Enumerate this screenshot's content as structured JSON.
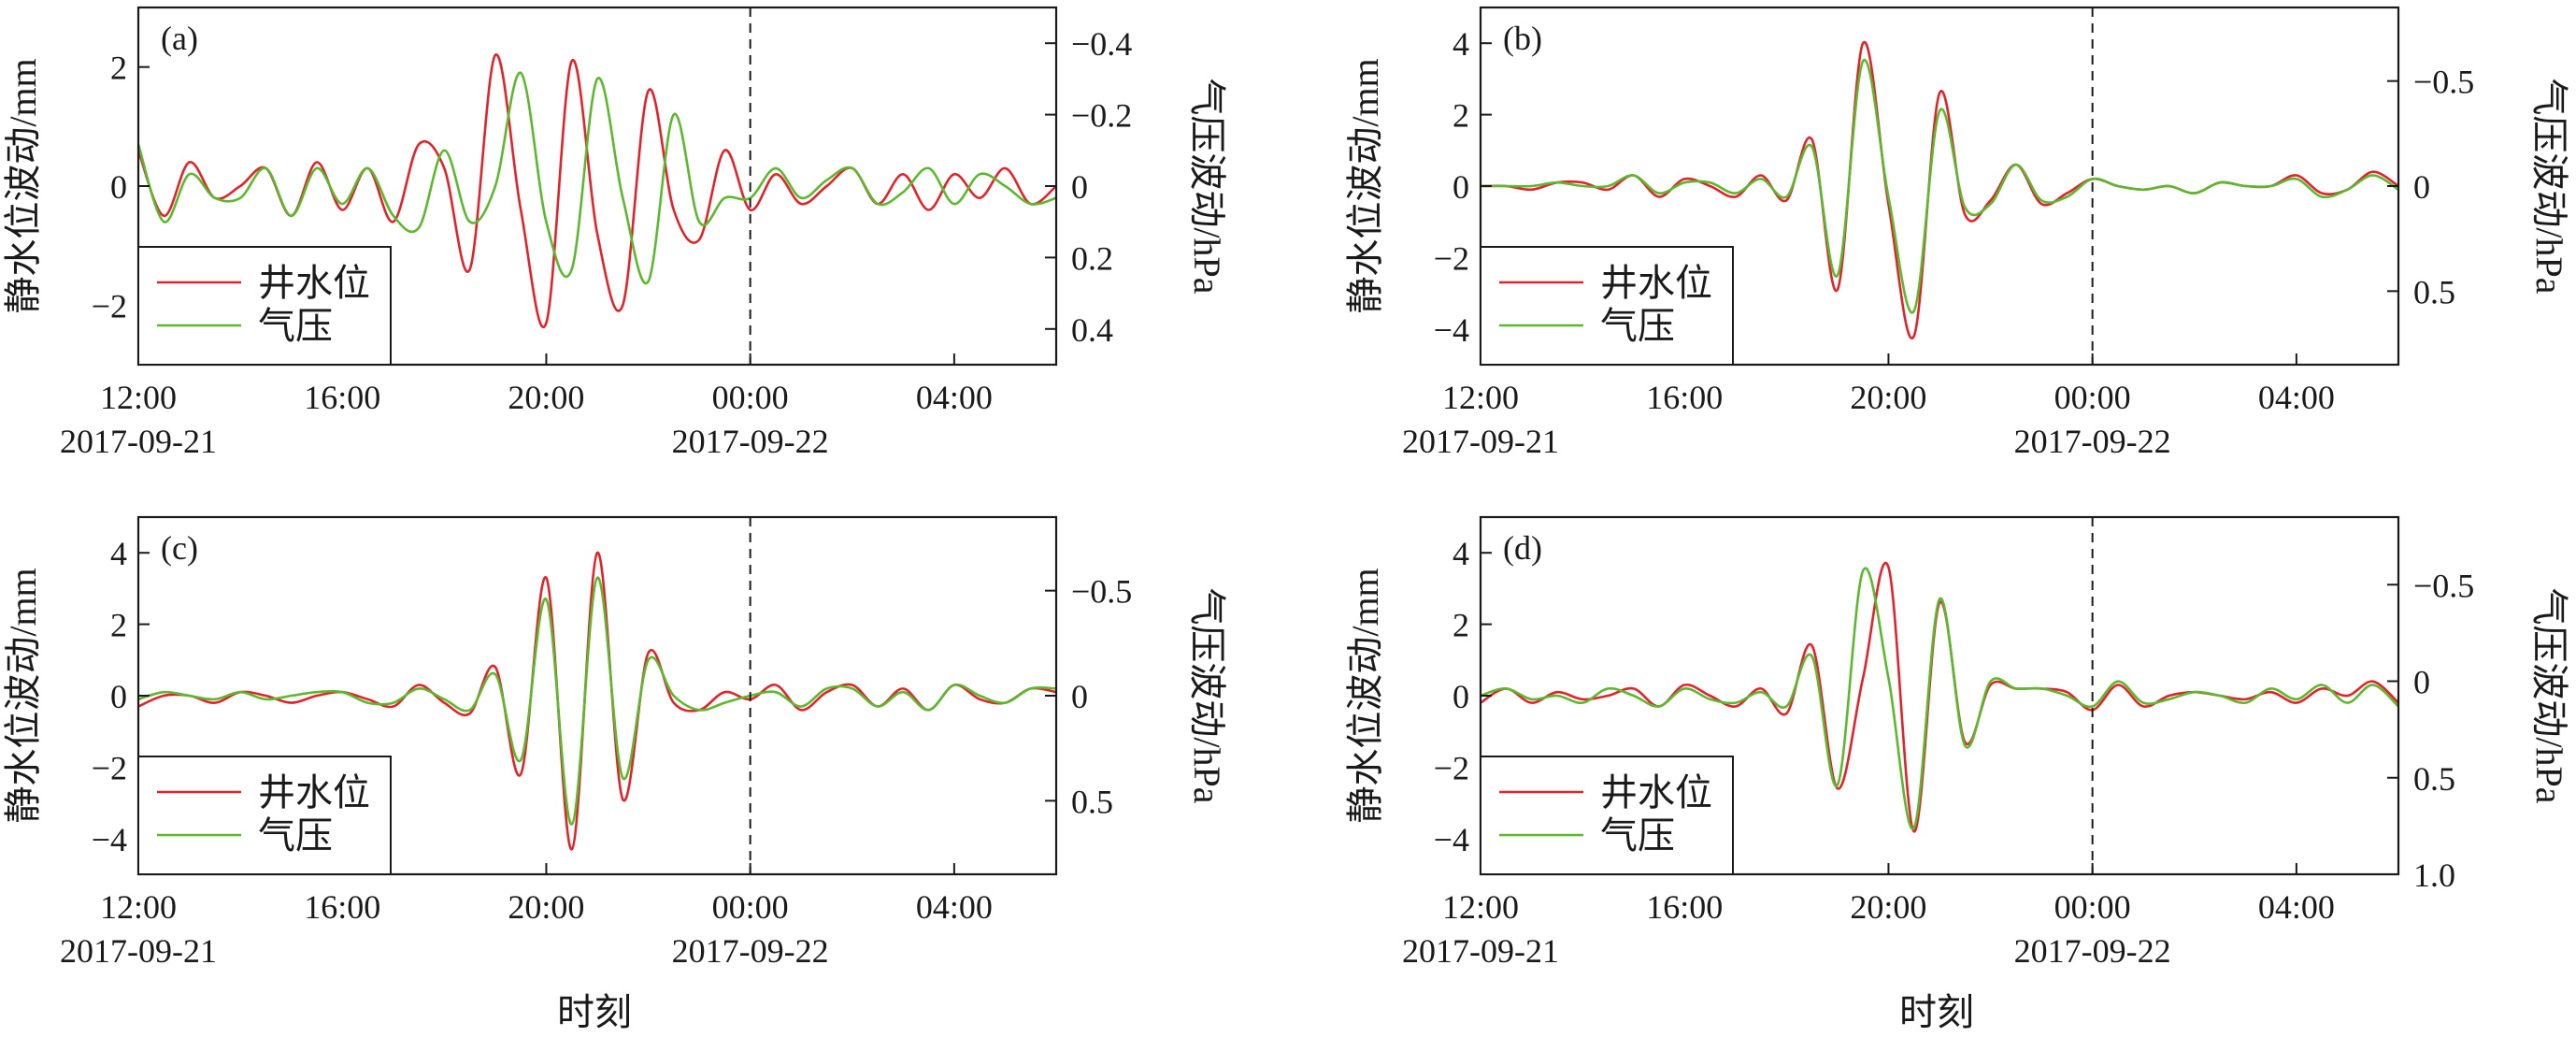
{
  "figure": {
    "xlabel": "时刻"
  },
  "colors": {
    "well": "#e0242c",
    "pressure": "#5cb82e",
    "axis": "#1a1a1a",
    "dash": "#1a1a1a"
  },
  "legend": {
    "well": "井水位",
    "pressure": "气压"
  },
  "x_ticks": [
    {
      "value": 0,
      "time": "12:00",
      "date": "2017-09-21"
    },
    {
      "value": 4,
      "time": "16:00",
      "date": ""
    },
    {
      "value": 8,
      "time": "20:00",
      "date": ""
    },
    {
      "value": 12,
      "time": "00:00",
      "date": "2017-09-22"
    },
    {
      "value": 16,
      "time": "04:00",
      "date": ""
    }
  ],
  "chart_data": [
    {
      "type": "line",
      "panel": "(a)",
      "xlim": [
        "2017-09-21 12:00",
        "2017-09-22 06:00"
      ],
      "ylabel": "静水位波动/mm",
      "ylabel_right": "气压波动/hPa",
      "ylim": [
        -3,
        3
      ],
      "yticks": [
        -2,
        0,
        2
      ],
      "yticklabels": [
        "−2",
        "0",
        "2"
      ],
      "y2lim": [
        0.5,
        -0.5
      ],
      "y2ticks": [
        -0.4,
        -0.2,
        0,
        0.2,
        0.4
      ],
      "y2ticklabels": [
        "−0.4",
        "−0.2",
        "0",
        "0.2",
        "0.4"
      ],
      "vline": "2017-09-22 00:00",
      "series": [
        {
          "name": "井水位",
          "axis": "left",
          "x": [
            "2017-09-21 12:00",
            "2017-09-21 12:30",
            "2017-09-21 13:00",
            "2017-09-21 13:30",
            "2017-09-21 14:00",
            "2017-09-21 14:30",
            "2017-09-21 15:00",
            "2017-09-21 15:30",
            "2017-09-21 16:00",
            "2017-09-21 16:30",
            "2017-09-21 17:00",
            "2017-09-21 17:30",
            "2017-09-21 18:00",
            "2017-09-21 18:30",
            "2017-09-21 19:00",
            "2017-09-21 19:30",
            "2017-09-21 20:00",
            "2017-09-21 20:30",
            "2017-09-21 21:00",
            "2017-09-21 21:30",
            "2017-09-21 22:00",
            "2017-09-21 22:30",
            "2017-09-21 23:00",
            "2017-09-21 23:30",
            "2017-09-22 00:00",
            "2017-09-22 00:30",
            "2017-09-22 01:00",
            "2017-09-22 01:30",
            "2017-09-22 02:00",
            "2017-09-22 02:30",
            "2017-09-22 03:00",
            "2017-09-22 03:30",
            "2017-09-22 04:00",
            "2017-09-22 04:30",
            "2017-09-22 05:00",
            "2017-09-22 05:30",
            "2017-09-22 06:00"
          ],
          "y": [
            0.6,
            -0.5,
            0.4,
            -0.2,
            0.0,
            0.3,
            -0.5,
            0.4,
            -0.4,
            0.3,
            -0.6,
            0.7,
            0.3,
            -1.4,
            2.2,
            -0.4,
            -2.3,
            2.1,
            -0.8,
            -2.0,
            1.6,
            -0.4,
            -0.9,
            0.6,
            -0.4,
            0.2,
            -0.3,
            0.0,
            0.3,
            -0.3,
            0.2,
            -0.4,
            0.2,
            -0.2,
            0.3,
            -0.3,
            0.0
          ]
        },
        {
          "name": "气压",
          "axis": "left",
          "x": [
            "2017-09-21 12:00",
            "2017-09-21 12:30",
            "2017-09-21 13:00",
            "2017-09-21 13:30",
            "2017-09-21 14:00",
            "2017-09-21 14:30",
            "2017-09-21 15:00",
            "2017-09-21 15:30",
            "2017-09-21 16:00",
            "2017-09-21 16:30",
            "2017-09-21 17:00",
            "2017-09-21 17:30",
            "2017-09-21 18:00",
            "2017-09-21 18:30",
            "2017-09-21 19:00",
            "2017-09-21 19:30",
            "2017-09-21 20:00",
            "2017-09-21 20:30",
            "2017-09-21 21:00",
            "2017-09-21 21:30",
            "2017-09-21 22:00",
            "2017-09-21 22:30",
            "2017-09-21 23:00",
            "2017-09-21 23:30",
            "2017-09-22 00:00",
            "2017-09-22 00:30",
            "2017-09-22 01:00",
            "2017-09-22 01:30",
            "2017-09-22 02:00",
            "2017-09-22 02:30",
            "2017-09-22 03:00",
            "2017-09-22 03:30",
            "2017-09-22 04:00",
            "2017-09-22 04:30",
            "2017-09-22 05:00",
            "2017-09-22 05:30",
            "2017-09-22 06:00"
          ],
          "y": [
            0.7,
            -0.6,
            0.2,
            -0.2,
            -0.2,
            0.3,
            -0.5,
            0.3,
            -0.3,
            0.3,
            -0.5,
            -0.7,
            0.6,
            -0.6,
            0.0,
            1.9,
            -0.6,
            -1.4,
            1.8,
            -0.2,
            -1.6,
            1.2,
            -0.6,
            -0.2,
            -0.2,
            0.3,
            -0.2,
            0.1,
            0.3,
            -0.3,
            -0.1,
            0.3,
            -0.3,
            0.2,
            0.0,
            -0.3,
            -0.2
          ]
        }
      ]
    },
    {
      "type": "line",
      "panel": "(b)",
      "xlim": [
        "2017-09-21 12:00",
        "2017-09-22 06:00"
      ],
      "ylabel": "静水位波动/mm",
      "ylabel_right": "气压波动/hPa",
      "ylim": [
        -5,
        5
      ],
      "yticks": [
        -4,
        -2,
        0,
        2,
        4
      ],
      "yticklabels": [
        "−4",
        "−2",
        "0",
        "2",
        "4"
      ],
      "y2lim": [
        0.85,
        -0.85
      ],
      "y2ticks": [
        -0.5,
        0,
        0.5
      ],
      "y2ticklabels": [
        "−0.5",
        "0",
        "0.5"
      ],
      "vline": "2017-09-22 00:00",
      "series": [
        {
          "name": "井水位",
          "axis": "left",
          "x": [
            "2017-09-21 12:00",
            "2017-09-21 12:30",
            "2017-09-21 13:00",
            "2017-09-21 13:30",
            "2017-09-21 14:00",
            "2017-09-21 14:30",
            "2017-09-21 15:00",
            "2017-09-21 15:30",
            "2017-09-21 16:00",
            "2017-09-21 16:30",
            "2017-09-21 17:00",
            "2017-09-21 17:30",
            "2017-09-21 18:00",
            "2017-09-21 18:30",
            "2017-09-21 19:00",
            "2017-09-21 19:30",
            "2017-09-21 20:00",
            "2017-09-21 20:30",
            "2017-09-21 21:00",
            "2017-09-21 21:30",
            "2017-09-21 22:00",
            "2017-09-21 22:30",
            "2017-09-21 23:00",
            "2017-09-21 23:30",
            "2017-09-22 00:00",
            "2017-09-22 00:30",
            "2017-09-22 01:00",
            "2017-09-22 01:30",
            "2017-09-22 02:00",
            "2017-09-22 02:30",
            "2017-09-22 03:00",
            "2017-09-22 03:30",
            "2017-09-22 04:00",
            "2017-09-22 04:30",
            "2017-09-22 05:00",
            "2017-09-22 05:30",
            "2017-09-22 06:00"
          ],
          "y": [
            0.0,
            0.0,
            -0.1,
            0.1,
            0.1,
            -0.1,
            0.3,
            -0.3,
            0.2,
            0.0,
            -0.3,
            0.3,
            -0.4,
            1.3,
            -2.9,
            4.0,
            -0.5,
            -4.2,
            2.6,
            -0.8,
            -0.4,
            0.6,
            -0.5,
            -0.2,
            0.2,
            0.0,
            -0.1,
            0.0,
            -0.2,
            0.1,
            0.0,
            0.0,
            0.3,
            -0.2,
            -0.1,
            0.4,
            0.0
          ]
        },
        {
          "name": "气压",
          "axis": "left",
          "x": [
            "2017-09-21 12:00",
            "2017-09-21 12:30",
            "2017-09-21 13:00",
            "2017-09-21 13:30",
            "2017-09-21 14:00",
            "2017-09-21 14:30",
            "2017-09-21 15:00",
            "2017-09-21 15:30",
            "2017-09-21 16:00",
            "2017-09-21 16:30",
            "2017-09-21 17:00",
            "2017-09-21 17:30",
            "2017-09-21 18:00",
            "2017-09-21 18:30",
            "2017-09-21 19:00",
            "2017-09-21 19:30",
            "2017-09-21 20:00",
            "2017-09-21 20:30",
            "2017-09-21 21:00",
            "2017-09-21 21:30",
            "2017-09-21 22:00",
            "2017-09-21 22:30",
            "2017-09-21 23:00",
            "2017-09-21 23:30",
            "2017-09-22 00:00",
            "2017-09-22 00:30",
            "2017-09-22 01:00",
            "2017-09-22 01:30",
            "2017-09-22 02:00",
            "2017-09-22 02:30",
            "2017-09-22 03:00",
            "2017-09-22 03:30",
            "2017-09-22 04:00",
            "2017-09-22 04:30",
            "2017-09-22 05:00",
            "2017-09-22 05:30",
            "2017-09-22 06:00"
          ],
          "y": [
            0.0,
            0.0,
            0.0,
            0.1,
            0.0,
            0.0,
            0.3,
            -0.2,
            0.1,
            0.1,
            -0.2,
            0.2,
            -0.3,
            1.1,
            -2.5,
            3.5,
            -0.3,
            -3.5,
            2.1,
            -0.6,
            -0.5,
            0.6,
            -0.4,
            -0.3,
            0.2,
            0.0,
            -0.1,
            0.0,
            -0.2,
            0.1,
            0.0,
            0.0,
            0.2,
            -0.3,
            -0.1,
            0.3,
            -0.1
          ]
        }
      ]
    },
    {
      "type": "line",
      "panel": "(c)",
      "xlim": [
        "2017-09-21 12:00",
        "2017-09-22 06:00"
      ],
      "ylabel": "静水位波动/mm",
      "ylabel_right": "气压波动/hPa",
      "ylim": [
        -5,
        5
      ],
      "yticks": [
        -4,
        -2,
        0,
        2,
        4
      ],
      "yticklabels": [
        "−4",
        "−2",
        "0",
        "2",
        "4"
      ],
      "y2lim": [
        0.85,
        -0.85
      ],
      "y2ticks": [
        -0.5,
        0,
        0.5
      ],
      "y2ticklabels": [
        "−0.5",
        "0",
        "0.5"
      ],
      "vline": "2017-09-22 00:00",
      "series": [
        {
          "name": "井水位",
          "axis": "left",
          "x": [
            "2017-09-21 12:00",
            "2017-09-21 12:30",
            "2017-09-21 13:00",
            "2017-09-21 13:30",
            "2017-09-21 14:00",
            "2017-09-21 14:30",
            "2017-09-21 15:00",
            "2017-09-21 15:30",
            "2017-09-21 16:00",
            "2017-09-21 16:30",
            "2017-09-21 17:00",
            "2017-09-21 17:30",
            "2017-09-21 18:00",
            "2017-09-21 18:30",
            "2017-09-21 19:00",
            "2017-09-21 19:30",
            "2017-09-21 20:00",
            "2017-09-21 20:30",
            "2017-09-21 21:00",
            "2017-09-21 21:30",
            "2017-09-21 22:00",
            "2017-09-21 22:30",
            "2017-09-21 23:00",
            "2017-09-21 23:30",
            "2017-09-22 00:00",
            "2017-09-22 00:30",
            "2017-09-22 01:00",
            "2017-09-22 01:30",
            "2017-09-22 02:00",
            "2017-09-22 02:30",
            "2017-09-22 03:00",
            "2017-09-22 03:30",
            "2017-09-22 04:00",
            "2017-09-22 04:30",
            "2017-09-22 05:00",
            "2017-09-22 05:30",
            "2017-09-22 06:00"
          ],
          "y": [
            -0.3,
            0.0,
            0.0,
            -0.2,
            0.1,
            0.0,
            -0.2,
            0.0,
            0.1,
            -0.1,
            -0.3,
            0.3,
            -0.2,
            -0.5,
            0.8,
            -2.2,
            3.3,
            -4.3,
            4.0,
            -2.9,
            1.2,
            -0.2,
            -0.4,
            0.1,
            -0.1,
            0.3,
            -0.4,
            0.1,
            0.3,
            -0.3,
            0.2,
            -0.4,
            0.3,
            -0.1,
            -0.2,
            0.2,
            0.1
          ]
        },
        {
          "name": "气压",
          "axis": "left",
          "x": [
            "2017-09-21 12:00",
            "2017-09-21 12:30",
            "2017-09-21 13:00",
            "2017-09-21 13:30",
            "2017-09-21 14:00",
            "2017-09-21 14:30",
            "2017-09-21 15:00",
            "2017-09-21 15:30",
            "2017-09-21 16:00",
            "2017-09-21 16:30",
            "2017-09-21 17:00",
            "2017-09-21 17:30",
            "2017-09-21 18:00",
            "2017-09-21 18:30",
            "2017-09-21 19:00",
            "2017-09-21 19:30",
            "2017-09-21 20:00",
            "2017-09-21 20:30",
            "2017-09-21 21:00",
            "2017-09-21 21:30",
            "2017-09-21 22:00",
            "2017-09-21 22:30",
            "2017-09-21 23:00",
            "2017-09-21 23:30",
            "2017-09-22 00:00",
            "2017-09-22 00:30",
            "2017-09-22 01:00",
            "2017-09-22 01:30",
            "2017-09-22 02:00",
            "2017-09-22 02:30",
            "2017-09-22 03:00",
            "2017-09-22 03:30",
            "2017-09-22 04:00",
            "2017-09-22 04:30",
            "2017-09-22 05:00",
            "2017-09-22 05:30",
            "2017-09-22 06:00"
          ],
          "y": [
            -0.1,
            0.1,
            0.0,
            -0.1,
            0.1,
            -0.1,
            0.0,
            0.1,
            0.1,
            -0.2,
            -0.2,
            0.2,
            -0.1,
            -0.4,
            0.6,
            -1.8,
            2.7,
            -3.6,
            3.3,
            -2.3,
            1.0,
            0.0,
            -0.4,
            -0.2,
            0.0,
            0.1,
            -0.3,
            0.2,
            0.2,
            -0.3,
            0.1,
            -0.4,
            0.3,
            0.0,
            -0.2,
            0.2,
            0.2
          ]
        }
      ]
    },
    {
      "type": "line",
      "panel": "(d)",
      "xlim": [
        "2017-09-21 12:00",
        "2017-09-22 06:00"
      ],
      "ylabel": "静水位波动/mm",
      "ylabel_right": "气压波动/hPa",
      "ylim": [
        -5,
        5
      ],
      "yticks": [
        -4,
        -2,
        0,
        2,
        4
      ],
      "yticklabels": [
        "−4",
        "−2",
        "0",
        "2",
        "4"
      ],
      "y2lim": [
        1.0,
        -0.85
      ],
      "y2ticks": [
        -0.5,
        0,
        0.5,
        1.0
      ],
      "y2ticklabels": [
        "−0.5",
        "0",
        "0.5",
        "1.0"
      ],
      "vline": "2017-09-22 00:00",
      "series": [
        {
          "name": "井水位",
          "axis": "left",
          "x": [
            "2017-09-21 12:00",
            "2017-09-21 12:30",
            "2017-09-21 13:00",
            "2017-09-21 13:30",
            "2017-09-21 14:00",
            "2017-09-21 14:30",
            "2017-09-21 15:00",
            "2017-09-21 15:30",
            "2017-09-21 16:00",
            "2017-09-21 16:30",
            "2017-09-21 17:00",
            "2017-09-21 17:30",
            "2017-09-21 18:00",
            "2017-09-21 18:30",
            "2017-09-21 19:00",
            "2017-09-21 19:30",
            "2017-09-21 20:00",
            "2017-09-21 20:30",
            "2017-09-21 21:00",
            "2017-09-21 21:30",
            "2017-09-21 22:00",
            "2017-09-21 22:30",
            "2017-09-21 23:00",
            "2017-09-21 23:30",
            "2017-09-22 00:00",
            "2017-09-22 00:30",
            "2017-09-22 01:00",
            "2017-09-22 01:30",
            "2017-09-22 02:00",
            "2017-09-22 02:30",
            "2017-09-22 03:00",
            "2017-09-22 03:30",
            "2017-09-22 04:00",
            "2017-09-22 04:30",
            "2017-09-22 05:00",
            "2017-09-22 05:30",
            "2017-09-22 06:00"
          ],
          "y": [
            -0.2,
            0.2,
            -0.2,
            0.1,
            -0.1,
            0.0,
            0.2,
            -0.3,
            0.3,
            0.0,
            -0.3,
            0.2,
            -0.5,
            1.4,
            -2.6,
            0.5,
            3.6,
            -3.8,
            2.6,
            -1.3,
            0.3,
            0.2,
            0.2,
            0.1,
            -0.4,
            0.3,
            -0.3,
            0.0,
            0.1,
            0.0,
            -0.1,
            0.1,
            -0.2,
            0.2,
            0.0,
            0.4,
            -0.2
          ]
        },
        {
          "name": "气压",
          "axis": "left",
          "x": [
            "2017-09-21 12:00",
            "2017-09-21 12:30",
            "2017-09-21 13:00",
            "2017-09-21 13:30",
            "2017-09-21 14:00",
            "2017-09-21 14:30",
            "2017-09-21 15:00",
            "2017-09-21 15:30",
            "2017-09-21 16:00",
            "2017-09-21 16:30",
            "2017-09-21 17:00",
            "2017-09-21 17:30",
            "2017-09-21 18:00",
            "2017-09-21 18:30",
            "2017-09-21 19:00",
            "2017-09-21 19:30",
            "2017-09-21 20:00",
            "2017-09-21 20:30",
            "2017-09-21 21:00",
            "2017-09-21 21:30",
            "2017-09-21 22:00",
            "2017-09-21 22:30",
            "2017-09-21 23:00",
            "2017-09-21 23:30",
            "2017-09-22 00:00",
            "2017-09-22 00:30",
            "2017-09-22 01:00",
            "2017-09-22 01:30",
            "2017-09-22 02:00",
            "2017-09-22 02:30",
            "2017-09-22 03:00",
            "2017-09-22 03:30",
            "2017-09-22 04:00",
            "2017-09-22 04:30",
            "2017-09-22 05:00",
            "2017-09-22 05:30",
            "2017-09-22 06:00"
          ],
          "y": [
            0.0,
            0.2,
            -0.1,
            0.0,
            -0.2,
            0.2,
            0.0,
            -0.3,
            0.2,
            -0.1,
            -0.2,
            0.1,
            -0.3,
            1.1,
            -2.5,
            3.5,
            0.5,
            -3.7,
            2.7,
            -1.4,
            0.4,
            0.2,
            0.2,
            0.0,
            -0.3,
            0.4,
            -0.2,
            -0.1,
            0.1,
            0.0,
            -0.2,
            0.2,
            -0.1,
            0.3,
            -0.2,
            0.3,
            -0.3
          ]
        }
      ]
    }
  ]
}
